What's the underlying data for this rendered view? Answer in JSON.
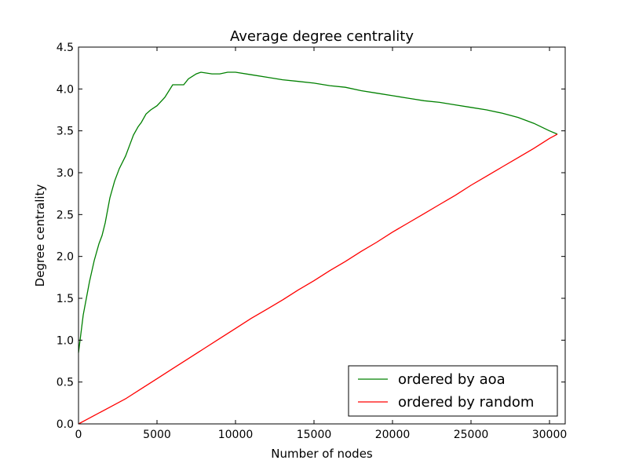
{
  "chart_data": {
    "type": "line",
    "title": "Average degree centrality",
    "xlabel": "Number of nodes",
    "ylabel": "Degree centrality",
    "xlim": [
      0,
      31000
    ],
    "ylim": [
      0,
      4.5
    ],
    "xticks": [
      0,
      5000,
      10000,
      15000,
      20000,
      25000,
      30000
    ],
    "xtick_labels": [
      "0",
      "5000",
      "10000",
      "15000",
      "20000",
      "25000",
      "30000"
    ],
    "yticks": [
      0,
      0.5,
      1.0,
      1.5,
      2.0,
      2.5,
      3.0,
      3.5,
      4.0,
      4.5
    ],
    "ytick_labels": [
      "0.0",
      "0.5",
      "1.0",
      "1.5",
      "2.0",
      "2.5",
      "3.0",
      "3.5",
      "4.0",
      "4.5"
    ],
    "grid": false,
    "legend_position": "lower-right",
    "series": [
      {
        "name": "ordered by aoa",
        "color": "#008000",
        "x": [
          0,
          100,
          200,
          300,
          500,
          700,
          1000,
          1300,
          1500,
          1700,
          2000,
          2300,
          2600,
          3000,
          3300,
          3500,
          3800,
          4000,
          4300,
          4600,
          5000,
          5500,
          6000,
          6300,
          6700,
          7000,
          7500,
          7800,
          8500,
          9000,
          9500,
          10000,
          11000,
          12000,
          13000,
          14000,
          15000,
          16000,
          17000,
          18000,
          19000,
          20000,
          21000,
          22000,
          23000,
          24000,
          25000,
          26000,
          27000,
          28000,
          29000,
          30000,
          30500
        ],
        "y": [
          0.85,
          1.0,
          1.15,
          1.3,
          1.5,
          1.7,
          1.95,
          2.15,
          2.25,
          2.4,
          2.7,
          2.9,
          3.05,
          3.2,
          3.35,
          3.45,
          3.55,
          3.6,
          3.7,
          3.75,
          3.8,
          3.9,
          4.05,
          4.05,
          4.05,
          4.12,
          4.18,
          4.2,
          4.18,
          4.18,
          4.2,
          4.2,
          4.17,
          4.14,
          4.11,
          4.09,
          4.07,
          4.04,
          4.02,
          3.98,
          3.95,
          3.92,
          3.89,
          3.86,
          3.84,
          3.81,
          3.78,
          3.75,
          3.71,
          3.66,
          3.59,
          3.5,
          3.46
        ]
      },
      {
        "name": "ordered by random",
        "color": "#ff0000",
        "x": [
          0,
          500,
          1000,
          2000,
          3000,
          4000,
          5000,
          6000,
          7000,
          8000,
          9000,
          10000,
          11000,
          12000,
          13000,
          14000,
          15000,
          16000,
          17000,
          18000,
          19000,
          20000,
          21000,
          22000,
          23000,
          24000,
          25000,
          26000,
          27000,
          28000,
          29000,
          30000,
          30500
        ],
        "y": [
          0.0,
          0.05,
          0.1,
          0.2,
          0.3,
          0.42,
          0.54,
          0.66,
          0.78,
          0.9,
          1.02,
          1.14,
          1.26,
          1.37,
          1.48,
          1.6,
          1.71,
          1.83,
          1.94,
          2.06,
          2.17,
          2.29,
          2.4,
          2.51,
          2.62,
          2.73,
          2.85,
          2.96,
          3.07,
          3.18,
          3.29,
          3.41,
          3.46
        ]
      }
    ]
  }
}
